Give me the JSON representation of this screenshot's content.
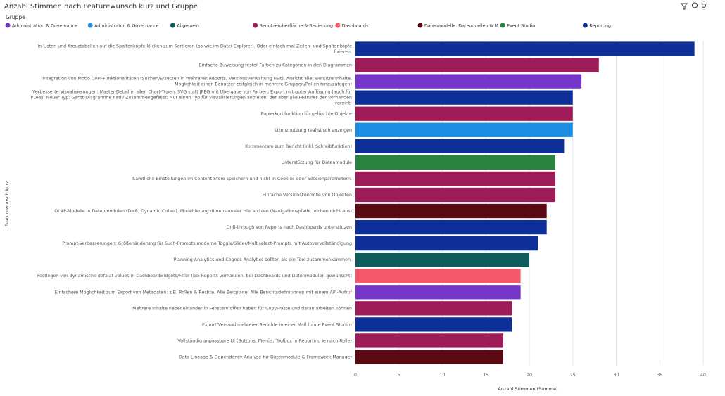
{
  "chart_data": {
    "type": "bar",
    "orientation": "horizontal",
    "stacked": false,
    "title": "Anzahl Stimmen nach Featurewunsch kurz und Gruppe",
    "legend_title": "Gruppe",
    "x_label": "Anzahl Stimmen (Summe)",
    "y_label": "Featurewunsch kurz",
    "xlim": [
      0,
      40
    ],
    "xticks": [
      0,
      5,
      10,
      15,
      20,
      25,
      30,
      35,
      40
    ],
    "grid": true,
    "legend_position": "top",
    "categories": [
      "In Listen und Kreuztabellen auf die Spaltenköpfe klicken zum Sortieren (so wie im Datei-Explorer). Oder einfach mal Zeilen- und Spaltenköpfe fixieren.",
      "Einfache Zuweisung fester Farben zu Kategorien in den Diagrammen",
      "Integration von Motio CI/PI-Funktionalitäten (Suchen/Ersetzen in mehreren Reports, Versionsverwaltung (Git), Ansicht aller Benutzerinhalte, Möglichkeit einen Benutzer zeitgleich in mehrere Gruppen/Rollen hinzuzufügen)",
      "Verbesserte Visualisierungen: Master-Detail in allen Chart-Typen, SVG statt JPEG mit Übergabe von Farben, Export mit guter Auflösung (auch für PDFs), Neuer Typ: Gantt-Diagramme nativ Zusammengefasst: Nur einen Typ für Visualisierungen anbieten, der aber alle Features der vorhanden vereint!",
      "Papierkorbfunktion für gelöschte Objekte",
      "Lizenznutzung realistisch anzeigen",
      "Kommentare zum Bericht (inkl. Schreibfunktion)",
      "Unterstützung für Datenmodule",
      "Sämtliche Einstellungen im Content Store speichern und nicht in Cookies oder Sessionparametern.",
      "Einfache Versionskontrolle von Objekten",
      "OLAP-Modelle in Datenmodulen (DMR, Dynamic Cubes), Modellierung dimensionaler Hierarchien (Navigationspfade reichen nicht aus)",
      "Drill-through von Reports nach Dashboards unterstützen",
      "Prompt-Verbesserungen: Größenänderung für Such-Prompts moderne Toggle/Slider/Multiselect-Prompts mit Autovervollständigung",
      "Planning Analytics und Cognos Analytics sollten als ein Tool zusammenkommen.",
      "Festlegen von dynamische default values in Dashboardwidgets/Filter (bei Reports vorhanden, bei Dashboards und Datenmodulen gewünscht)",
      "Einfachere Möglichkeit zum Export von Metadaten: z.B. Rollen & Rechte, Alle Zeitpläne, Alle Berichtsdefinitionen mit einem API-Aufruf",
      "Mehrere Inhalte nebeneinander in Fenstern offen haben für Copy/Paste und daran arbeiten können",
      "Export/Versand mehrerer Berichte in einer Mail (ohne Event Studio)",
      "Vollständig anpassbare UI (Buttons, Menüs, Toolbox in Reporting je nach Rolle)",
      "Data Lineage & Dependency-Analyse für Datenmodule & Framework Manager"
    ],
    "series": [
      {
        "name": "Administration & Governance",
        "color": "#7436c8",
        "values": [
          null,
          null,
          26,
          null,
          null,
          null,
          null,
          null,
          null,
          null,
          null,
          null,
          null,
          null,
          null,
          19,
          null,
          null,
          null,
          null
        ]
      },
      {
        "name": "Administraton & Governance",
        "color": "#1b8ee3",
        "values": [
          null,
          null,
          null,
          null,
          null,
          25,
          null,
          null,
          null,
          null,
          null,
          null,
          null,
          null,
          null,
          null,
          null,
          null,
          null,
          null
        ]
      },
      {
        "name": "Allgemein",
        "color": "#0e5b5c",
        "values": [
          null,
          null,
          null,
          null,
          null,
          null,
          null,
          null,
          null,
          null,
          null,
          null,
          null,
          20,
          null,
          null,
          null,
          null,
          null,
          null
        ]
      },
      {
        "name": "Benutzeroberfläche & Bedienung",
        "color": "#9d1c58",
        "values": [
          null,
          28,
          null,
          null,
          25,
          null,
          null,
          null,
          23,
          23,
          null,
          null,
          null,
          null,
          null,
          null,
          18,
          null,
          17,
          null
        ]
      },
      {
        "name": "Dashboards",
        "color": "#f45769",
        "values": [
          null,
          null,
          null,
          null,
          null,
          null,
          null,
          null,
          null,
          null,
          null,
          null,
          null,
          null,
          19,
          null,
          null,
          null,
          null,
          null
        ]
      },
      {
        "name": "Datenmodelle, Datenquellen & M...",
        "color": "#5a0a12",
        "values": [
          null,
          null,
          null,
          null,
          null,
          null,
          null,
          null,
          null,
          null,
          22,
          null,
          null,
          null,
          null,
          null,
          null,
          null,
          null,
          17
        ]
      },
      {
        "name": "Event Studio",
        "color": "#27833e",
        "values": [
          null,
          null,
          null,
          null,
          null,
          null,
          null,
          23,
          null,
          null,
          null,
          null,
          null,
          null,
          null,
          null,
          null,
          null,
          null,
          null
        ]
      },
      {
        "name": "Reporting",
        "color": "#0f2f98",
        "values": [
          39,
          null,
          null,
          25,
          null,
          null,
          24,
          null,
          null,
          null,
          null,
          22,
          21,
          null,
          null,
          null,
          null,
          18,
          null,
          null
        ]
      }
    ]
  }
}
